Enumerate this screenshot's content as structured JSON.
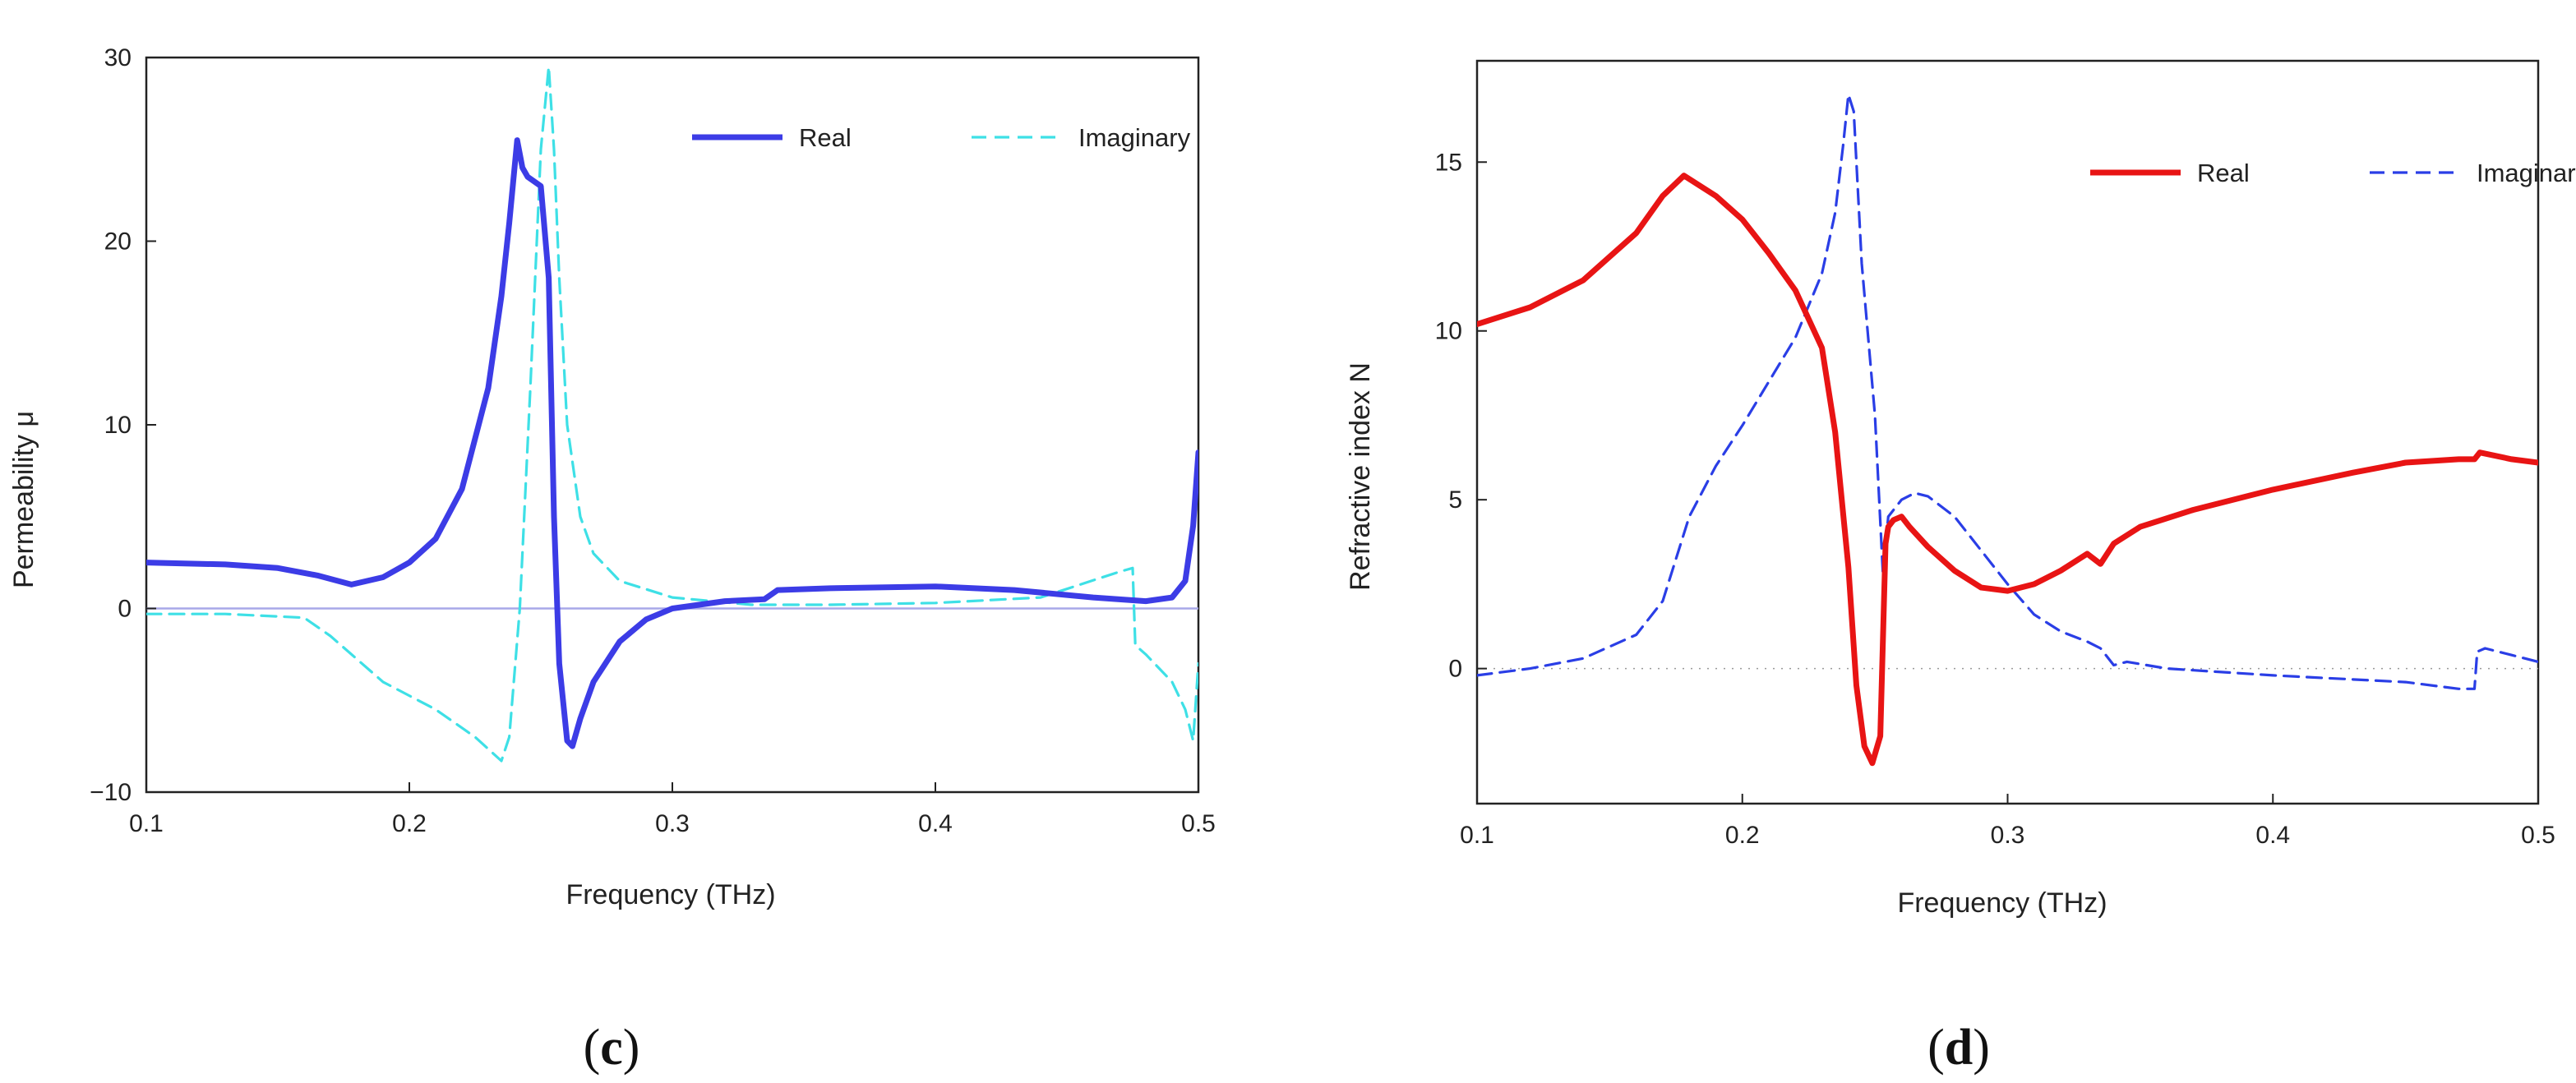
{
  "chart_data": [
    {
      "type": "line",
      "panel": "c",
      "xlabel": "Frequency (THz)",
      "ylabel": "Permeability μ",
      "xlim": [
        0.1,
        0.5
      ],
      "ylim": [
        -10,
        30
      ],
      "xticks": [
        0.1,
        0.2,
        0.3,
        0.4,
        0.5
      ],
      "xtick_labels": [
        "0.1",
        "0.2",
        "0.3",
        "0.4",
        "0.5"
      ],
      "yticks": [
        -10,
        0,
        10,
        20,
        30
      ],
      "ytick_labels": [
        "−10",
        "0",
        "10",
        "20",
        "30"
      ],
      "zero_line": true,
      "legend_position": "top-right",
      "series": [
        {
          "name": "Real",
          "color": "#3c3ce6",
          "dash": "solid",
          "x": [
            0.1,
            0.13,
            0.15,
            0.165,
            0.178,
            0.19,
            0.2,
            0.21,
            0.22,
            0.23,
            0.235,
            0.238,
            0.241,
            0.243,
            0.245,
            0.25,
            0.253,
            0.255,
            0.257,
            0.26,
            0.262,
            0.265,
            0.27,
            0.28,
            0.29,
            0.3,
            0.32,
            0.335,
            0.34,
            0.36,
            0.4,
            0.43,
            0.46,
            0.48,
            0.49,
            0.495,
            0.498,
            0.5
          ],
          "y": [
            2.5,
            2.4,
            2.2,
            1.8,
            1.3,
            1.7,
            2.5,
            3.8,
            6.5,
            12,
            17,
            21,
            25.5,
            24,
            23.5,
            23,
            18,
            5,
            -3,
            -7.2,
            -7.5,
            -6,
            -4,
            -1.8,
            -0.6,
            0,
            0.4,
            0.5,
            1,
            1.1,
            1.2,
            1,
            0.6,
            0.4,
            0.6,
            1.5,
            4.5,
            8.5
          ]
        },
        {
          "name": "Imaginary",
          "color": "#3ee0e6",
          "dash": "dashed",
          "x": [
            0.1,
            0.13,
            0.16,
            0.17,
            0.19,
            0.21,
            0.225,
            0.235,
            0.238,
            0.242,
            0.246,
            0.25,
            0.253,
            0.255,
            0.257,
            0.26,
            0.265,
            0.27,
            0.28,
            0.3,
            0.33,
            0.36,
            0.4,
            0.44,
            0.47,
            0.475,
            0.476,
            0.48,
            0.49,
            0.495,
            0.498,
            0.5
          ],
          "y": [
            -0.3,
            -0.3,
            -0.5,
            -1.5,
            -4,
            -5.5,
            -7,
            -8.3,
            -7,
            0,
            12,
            25,
            29.5,
            25,
            18,
            10,
            5,
            3,
            1.5,
            0.6,
            0.2,
            0.2,
            0.3,
            0.6,
            2,
            2.2,
            -2,
            -2.5,
            -4,
            -5.5,
            -7.2,
            -3
          ]
        }
      ]
    },
    {
      "type": "line",
      "panel": "d",
      "xlabel": "Frequency (THz)",
      "ylabel": "Refractive index N",
      "xlim": [
        0.1,
        0.5
      ],
      "ylim": [
        -4,
        18
      ],
      "xticks": [
        0.1,
        0.2,
        0.3,
        0.4,
        0.5
      ],
      "xtick_labels": [
        "0.1",
        "0.2",
        "0.3",
        "0.4",
        "0.5"
      ],
      "yticks": [
        0,
        5,
        10,
        15
      ],
      "ytick_labels": [
        "0",
        "5",
        "10",
        "15"
      ],
      "zero_line": true,
      "legend_position": "top-right",
      "series": [
        {
          "name": "Real",
          "color": "#e81414",
          "dash": "solid",
          "x": [
            0.1,
            0.12,
            0.14,
            0.16,
            0.17,
            0.178,
            0.19,
            0.2,
            0.21,
            0.22,
            0.23,
            0.235,
            0.24,
            0.243,
            0.246,
            0.249,
            0.252,
            0.254,
            0.255,
            0.257,
            0.26,
            0.263,
            0.27,
            0.28,
            0.29,
            0.3,
            0.31,
            0.32,
            0.33,
            0.335,
            0.34,
            0.35,
            0.37,
            0.4,
            0.43,
            0.45,
            0.47,
            0.476,
            0.478,
            0.49,
            0.5
          ],
          "y": [
            10.2,
            10.7,
            11.5,
            12.9,
            14,
            14.6,
            14,
            13.3,
            12.3,
            11.2,
            9.5,
            7,
            3,
            -0.5,
            -2.3,
            -2.8,
            -2,
            3.7,
            4.2,
            4.4,
            4.5,
            4.2,
            3.6,
            2.9,
            2.4,
            2.3,
            2.5,
            2.9,
            3.4,
            3.1,
            3.7,
            4.2,
            4.7,
            5.3,
            5.8,
            6.1,
            6.2,
            6.2,
            6.4,
            6.2,
            6.1
          ]
        },
        {
          "name": "Imaginary",
          "color": "#2a3ee6",
          "dash": "dashed",
          "x": [
            0.1,
            0.12,
            0.14,
            0.16,
            0.17,
            0.18,
            0.19,
            0.2,
            0.21,
            0.22,
            0.23,
            0.235,
            0.238,
            0.24,
            0.242,
            0.245,
            0.25,
            0.253,
            0.255,
            0.26,
            0.265,
            0.27,
            0.28,
            0.29,
            0.3,
            0.31,
            0.32,
            0.33,
            0.335,
            0.34,
            0.345,
            0.36,
            0.4,
            0.45,
            0.47,
            0.476,
            0.477,
            0.48,
            0.49,
            0.5
          ],
          "y": [
            -0.2,
            0,
            0.3,
            1,
            2,
            4.5,
            6,
            7.2,
            8.5,
            9.8,
            11.7,
            13.5,
            15.5,
            17,
            16.5,
            12,
            7.5,
            2.8,
            4.5,
            5,
            5.2,
            5.1,
            4.5,
            3.5,
            2.5,
            1.6,
            1.1,
            0.8,
            0.6,
            0.1,
            0.2,
            0,
            -0.2,
            -0.4,
            -0.6,
            -0.6,
            0.5,
            0.6,
            0.4,
            0.2
          ]
        }
      ]
    }
  ],
  "figure": {
    "panel_c": {
      "label_open": "(",
      "label_letter": "c",
      "label_close": ")"
    },
    "panel_d": {
      "label_open": "(",
      "label_letter": "d",
      "label_close": ")"
    }
  }
}
